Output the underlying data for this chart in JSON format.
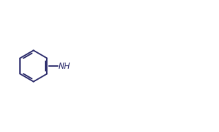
{
  "bg_color": "#ffffff",
  "line_color": "#2b2b6b",
  "line_width": 1.4,
  "font_size": 8.5,
  "figsize": [
    3.18,
    1.92
  ],
  "dpi": 100,
  "xlim": [
    0,
    9.5
  ],
  "ylim": [
    -0.5,
    5.5
  ]
}
